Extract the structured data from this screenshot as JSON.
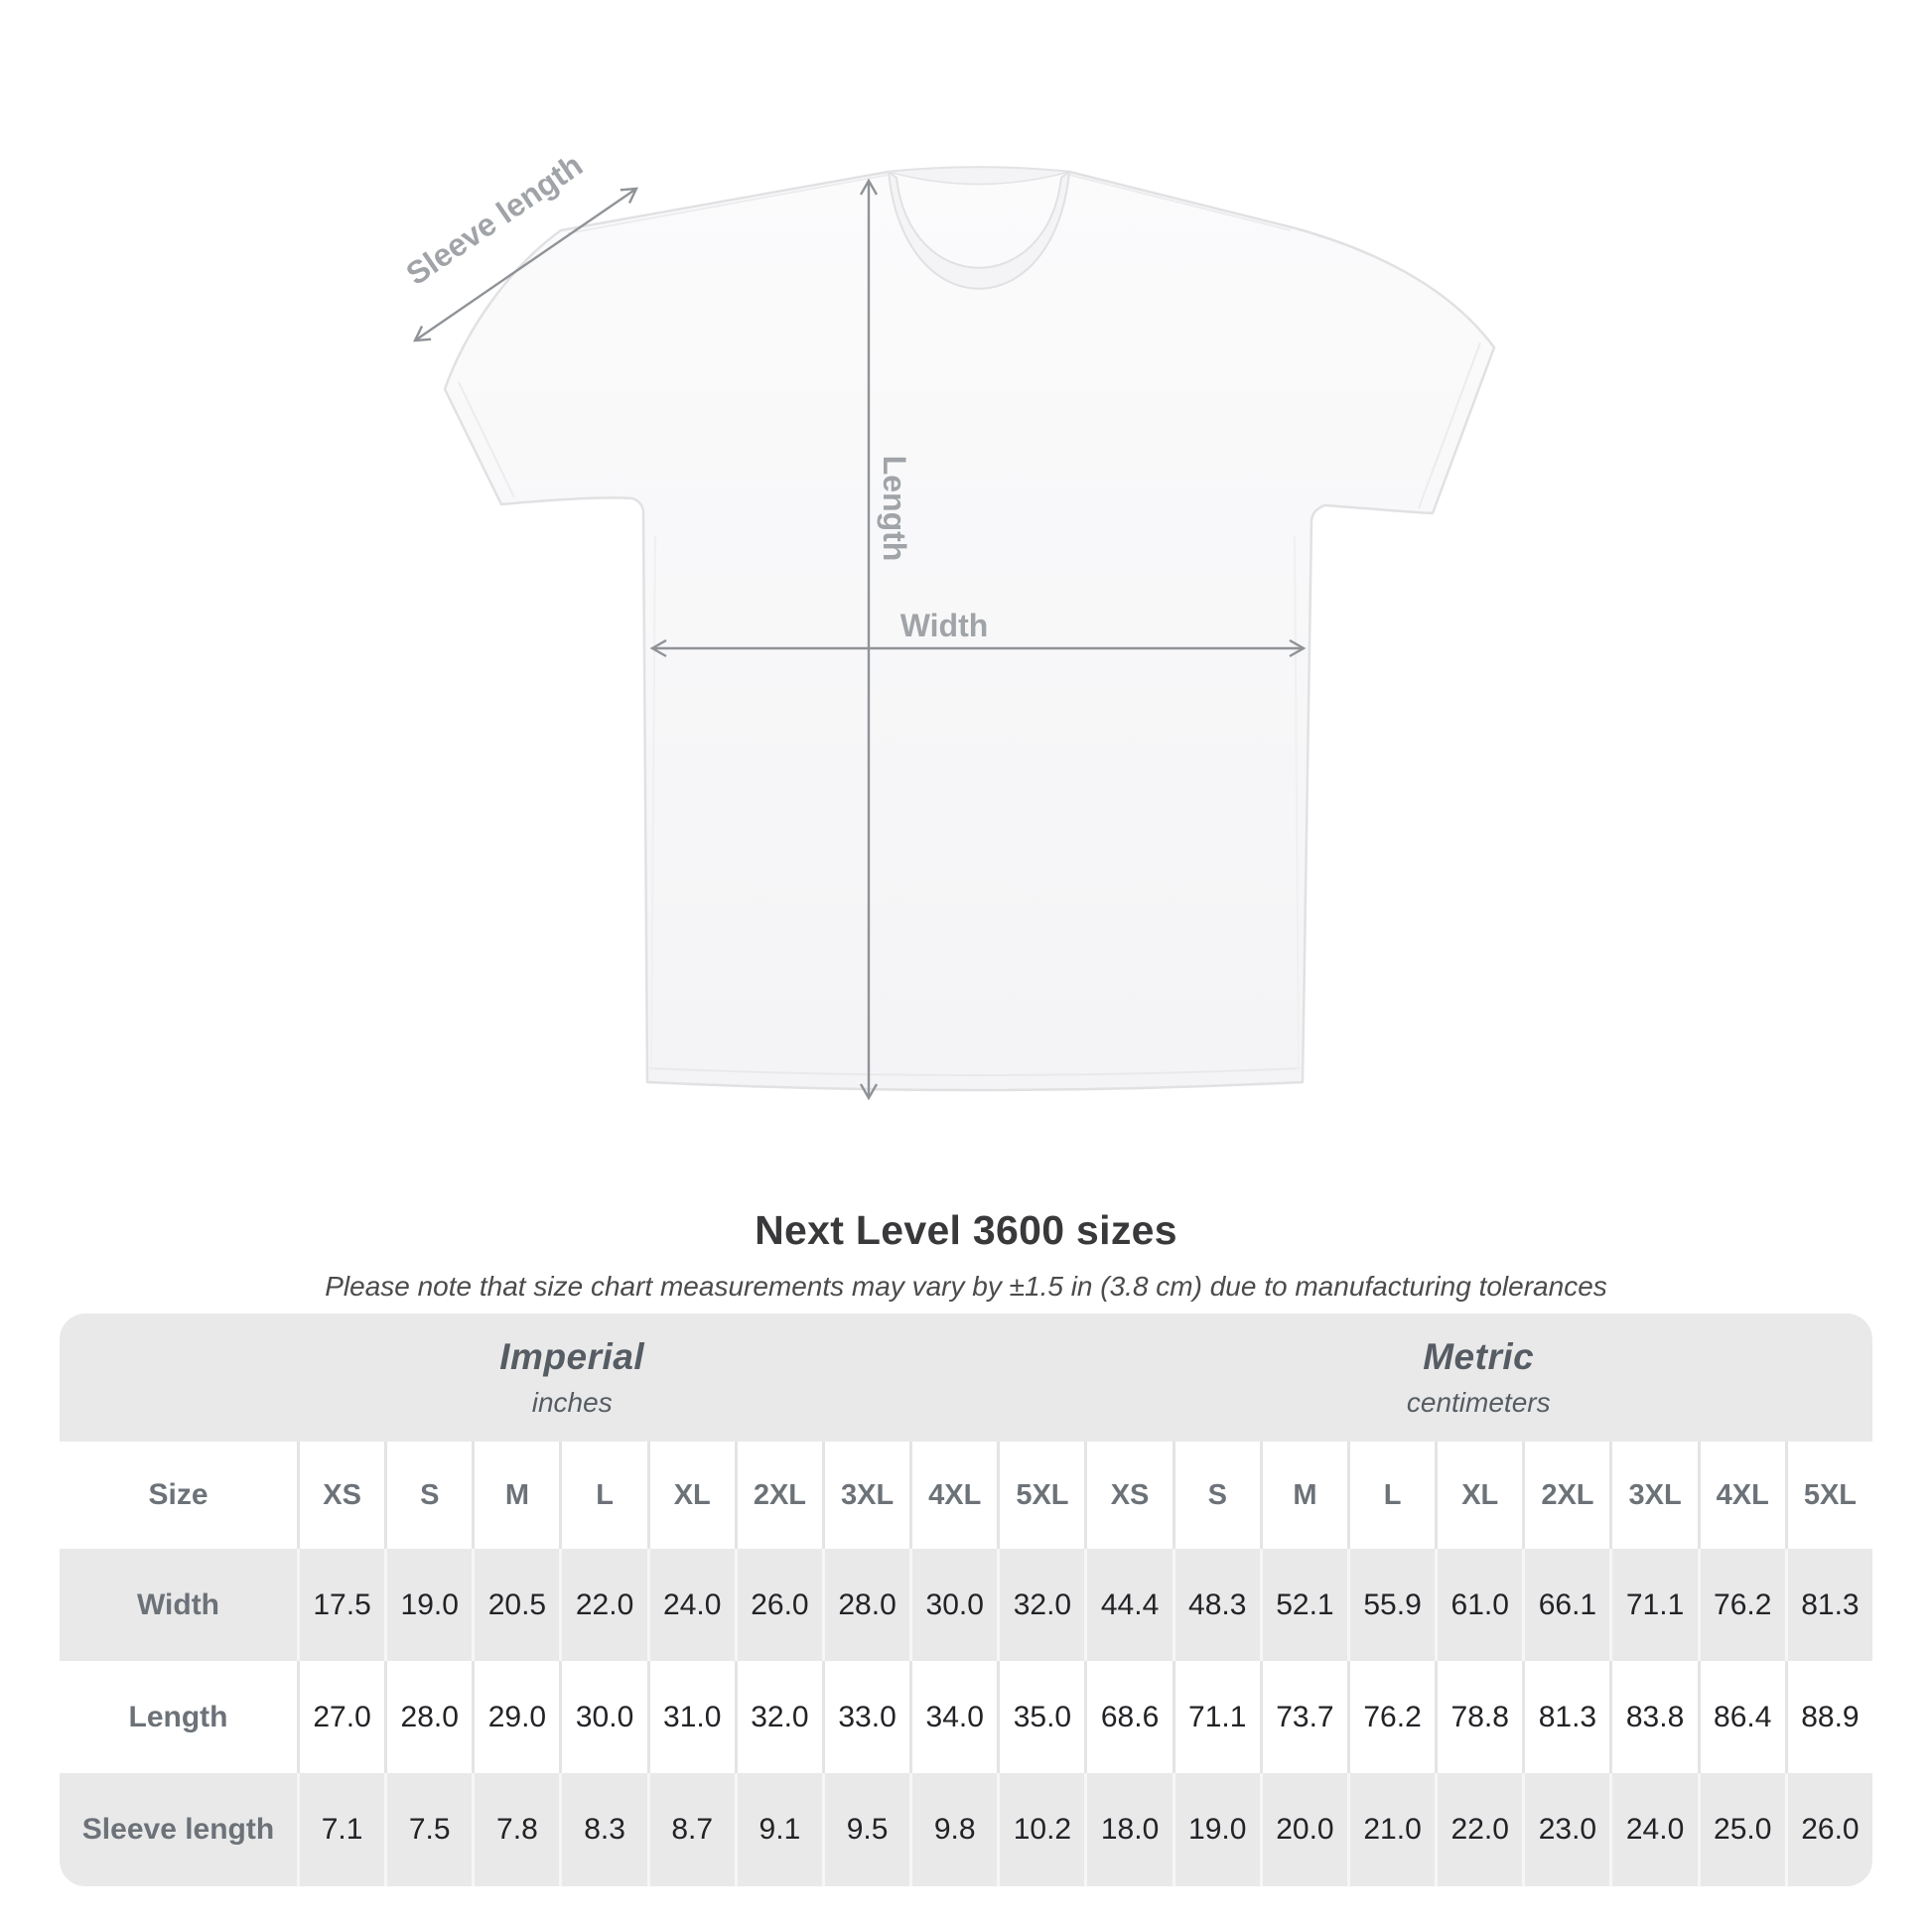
{
  "diagram": {
    "sleeve_length_label": "Sleeve length",
    "length_label": "Length",
    "width_label": "Width"
  },
  "colors": {
    "arrow": "#8f9397",
    "diagram_label": "#a0a3a7",
    "table_band": "#e9e9ea",
    "accent_text": "#6c7278",
    "value_text": "#222326"
  },
  "chart_data": {
    "type": "table",
    "title": "Next Level 3600 sizes",
    "note": "Please note that size chart measurements may vary by ±1.5 in (3.8 cm) due to manufacturing tolerances",
    "size_header": "Size",
    "sizes": [
      "XS",
      "S",
      "M",
      "L",
      "XL",
      "2XL",
      "3XL",
      "4XL",
      "5XL"
    ],
    "column_groups": [
      {
        "label": "Imperial",
        "unit": "inches"
      },
      {
        "label": "Metric",
        "unit": "centimeters"
      }
    ],
    "rows": [
      {
        "label": "Width",
        "imperial": [
          "17.5",
          "19.0",
          "20.5",
          "22.0",
          "24.0",
          "26.0",
          "28.0",
          "30.0",
          "32.0"
        ],
        "metric": [
          "44.4",
          "48.3",
          "52.1",
          "55.9",
          "61.0",
          "66.1",
          "71.1",
          "76.2",
          "81.3"
        ]
      },
      {
        "label": "Length",
        "imperial": [
          "27.0",
          "28.0",
          "29.0",
          "30.0",
          "31.0",
          "32.0",
          "33.0",
          "34.0",
          "35.0"
        ],
        "metric": [
          "68.6",
          "71.1",
          "73.7",
          "76.2",
          "78.8",
          "81.3",
          "83.8",
          "86.4",
          "88.9"
        ]
      },
      {
        "label": "Sleeve length",
        "imperial": [
          "7.1",
          "7.5",
          "7.8",
          "8.3",
          "8.7",
          "9.1",
          "9.5",
          "9.8",
          "10.2"
        ],
        "metric": [
          "18.0",
          "19.0",
          "20.0",
          "21.0",
          "22.0",
          "23.0",
          "24.0",
          "25.0",
          "26.0"
        ]
      }
    ]
  }
}
